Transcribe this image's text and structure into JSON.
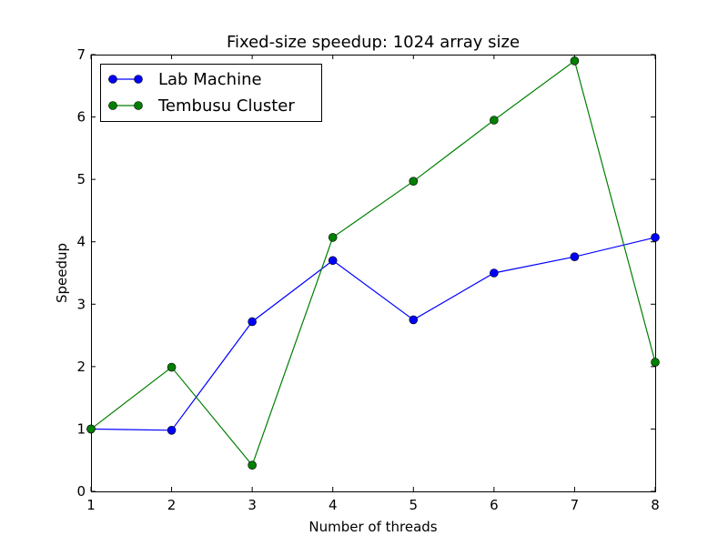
{
  "chart_data": {
    "type": "line",
    "title": "Fixed-size speedup: 1024 array size",
    "xlabel": "Number of threads",
    "ylabel": "Speedup",
    "x": [
      1,
      2,
      3,
      4,
      5,
      6,
      7,
      8
    ],
    "xlim": [
      1,
      8
    ],
    "ylim": [
      0,
      7
    ],
    "xticks": [
      "1",
      "2",
      "3",
      "4",
      "5",
      "6",
      "7",
      "8"
    ],
    "yticks": [
      "0",
      "1",
      "2",
      "3",
      "4",
      "5",
      "6",
      "7"
    ],
    "grid": false,
    "legend_position": "top-left",
    "series": [
      {
        "name": "Lab Machine",
        "color": "#0000ff",
        "marker": "circle",
        "values": [
          1.0,
          0.98,
          2.72,
          3.7,
          2.75,
          3.5,
          3.76,
          4.07
        ]
      },
      {
        "name": "Tembusu Cluster",
        "color": "#007f00",
        "marker": "circle",
        "values": [
          1.0,
          1.99,
          0.42,
          4.07,
          4.97,
          5.95,
          6.9,
          2.07
        ]
      }
    ]
  }
}
